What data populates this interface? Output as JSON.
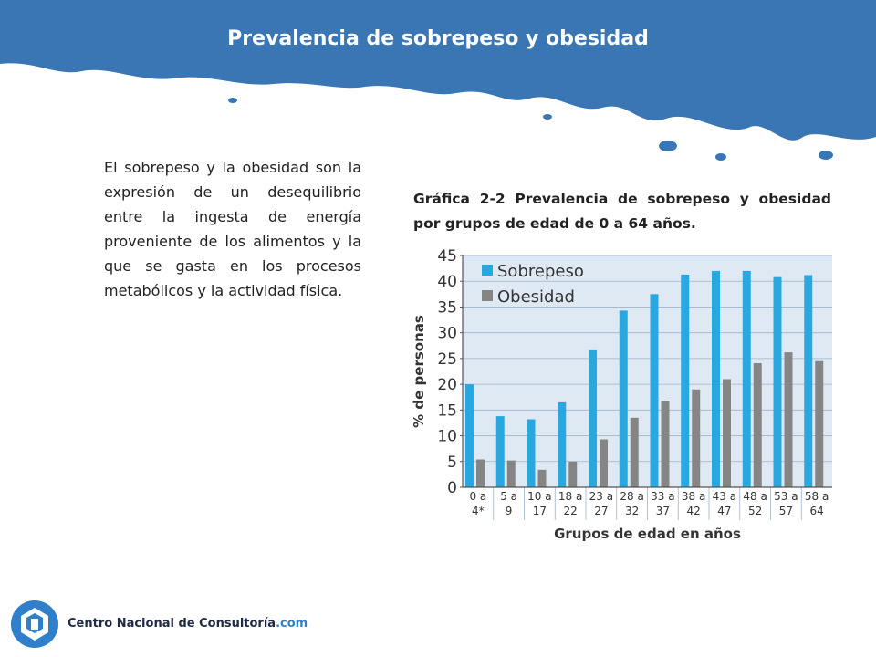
{
  "header": {
    "title": "Prevalencia de sobrepeso y obesidad",
    "banner_color": "#3a76b4"
  },
  "intro": {
    "text": "El sobrepeso y la obesidad son la expresión de un desequilibrio entre la ingesta de energía proveniente de los alimentos y la que se gasta en los procesos metabólicos y la actividad física."
  },
  "figure": {
    "caption": "Gráfica 2-2 Prevalencia de sobrepeso y obesidad por grupos de edad de 0 a 64 años."
  },
  "chart_data": {
    "type": "bar",
    "title": "",
    "xlabel": "Grupos de edad en años",
    "ylabel": "% de personas",
    "ylim": [
      0,
      45
    ],
    "yticks": [
      0,
      5,
      10,
      15,
      20,
      25,
      30,
      35,
      40,
      45
    ],
    "grid": true,
    "legend_position": "top-left",
    "categories": [
      "0 a 4*",
      "5 a 9",
      "10 a 17",
      "18 a 22",
      "23 a 27",
      "28 a 32",
      "33 a 37",
      "38 a 42",
      "43 a 47",
      "48 a 52",
      "53 a 57",
      "58 a 64"
    ],
    "category_lines": [
      [
        "0 a",
        "4*"
      ],
      [
        "5 a",
        "9"
      ],
      [
        "10 a",
        "17"
      ],
      [
        "18 a",
        "22"
      ],
      [
        "23 a",
        "27"
      ],
      [
        "28 a",
        "32"
      ],
      [
        "33 a",
        "37"
      ],
      [
        "38 a",
        "42"
      ],
      [
        "43 a",
        "47"
      ],
      [
        "48 a",
        "52"
      ],
      [
        "53 a",
        "57"
      ],
      [
        "58 a",
        "64"
      ]
    ],
    "series": [
      {
        "name": "Sobrepeso",
        "color": "#29a8df",
        "values": [
          20,
          13.8,
          13.2,
          16.5,
          26.6,
          34.3,
          37.5,
          41.3,
          42.0,
          42.0,
          40.8,
          41.2
        ]
      },
      {
        "name": "Obesidad",
        "color": "#858585",
        "values": [
          5.4,
          5.2,
          3.4,
          5.0,
          9.3,
          13.5,
          16.8,
          19.0,
          21.0,
          24.1,
          26.2,
          24.5
        ]
      }
    ],
    "plot_background": "#dfe9f4"
  },
  "footer": {
    "org_name": "Centro Nacional de Consultoría",
    "org_domain": ".com"
  }
}
